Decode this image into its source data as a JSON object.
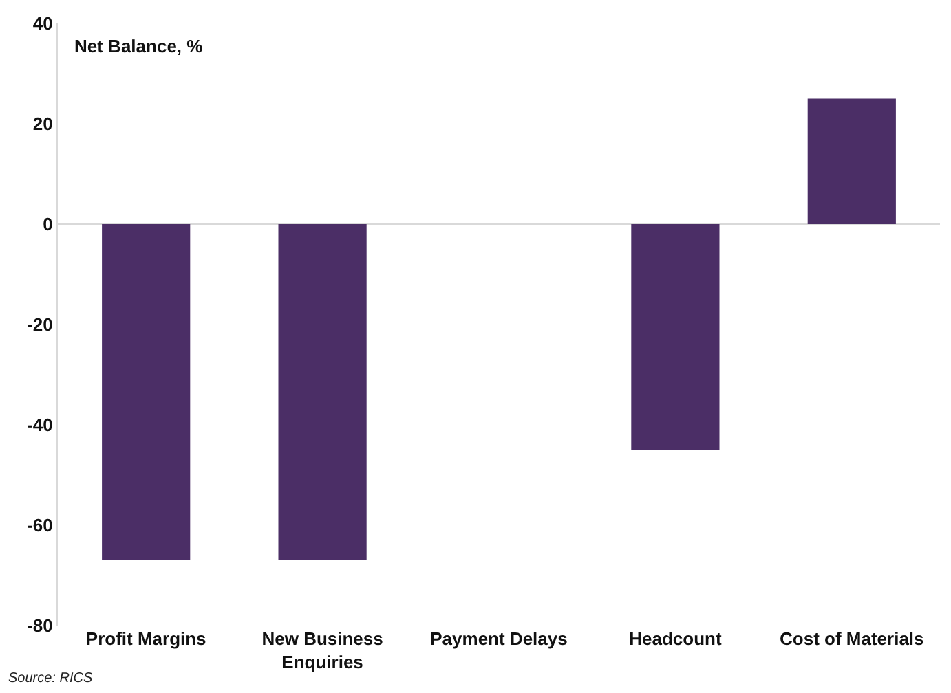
{
  "chart_data": {
    "type": "bar",
    "ylabel": "Net Balance, %",
    "categories": [
      "Profit Margins",
      "New Business Enquiries",
      "Payment Delays",
      "Headcount",
      "Cost of Materials"
    ],
    "values": [
      -67,
      -67,
      0,
      -45,
      25
    ],
    "color": "#4b2e66",
    "ylim": [
      -80,
      40
    ],
    "ref_lines": [
      {
        "axis": "y",
        "value": 0,
        "color": "#d9d9d9"
      }
    ],
    "yticks": [
      -80,
      -60,
      -40,
      -20,
      0,
      20,
      40
    ],
    "annotations": [
      "Source: RICS"
    ]
  }
}
